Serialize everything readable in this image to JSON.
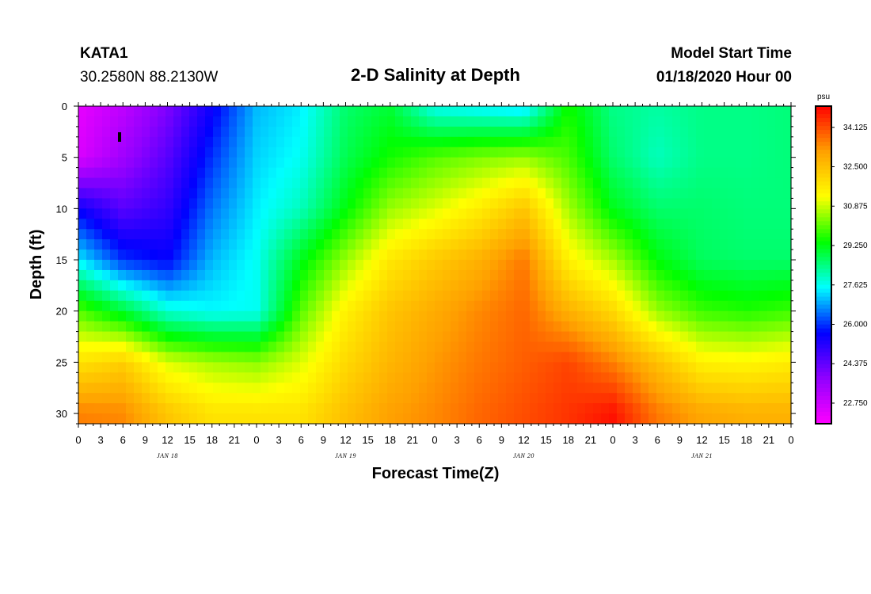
{
  "header": {
    "station_id": "KATA1",
    "station_coords": "30.2580N 88.2130W",
    "title": "2-D Salinity at Depth",
    "model_start_label": "Model Start Time",
    "model_start_value": "01/18/2020 Hour 00"
  },
  "chart_data": {
    "type": "heatmap",
    "title": "2-D Salinity at Depth",
    "xlabel": "Forecast Time(Z)",
    "ylabel": "Depth (ft)",
    "x_tick_labels": [
      "0",
      "3",
      "6",
      "9",
      "12",
      "15",
      "18",
      "21",
      "0",
      "3",
      "6",
      "9",
      "12",
      "15",
      "18",
      "21",
      "0",
      "3",
      "6",
      "9",
      "12",
      "15",
      "18",
      "21",
      "0",
      "3",
      "6",
      "9",
      "12",
      "15",
      "18",
      "21",
      "0"
    ],
    "x_range_hours": [
      0,
      96
    ],
    "date_labels": [
      {
        "text": "JAN 18",
        "hour": 12
      },
      {
        "text": "JAN 19",
        "hour": 36
      },
      {
        "text": "JAN 20",
        "hour": 60
      },
      {
        "text": "JAN 21",
        "hour": 84
      }
    ],
    "y_ticks": [
      "0",
      "5",
      "10",
      "15",
      "20",
      "25",
      "30"
    ],
    "y_range_ft": [
      0,
      31
    ],
    "y_inverted": true,
    "colorbar": {
      "unit": "psu",
      "labels": [
        "34.125",
        "32.500",
        "30.875",
        "29.250",
        "27.625",
        "26.000",
        "24.375",
        "22.750"
      ],
      "range": [
        21.9,
        35.0
      ],
      "colors": [
        "#ff00ff",
        "#9000ff",
        "#0000ff",
        "#00ffff",
        "#00ff00",
        "#ffff00",
        "#ffa000",
        "#ff0000"
      ]
    },
    "depth_levels_ft": [
      0,
      5,
      10,
      15,
      20,
      25,
      30
    ],
    "time_hours": [
      0,
      6,
      12,
      18,
      24,
      30,
      36,
      42,
      48,
      54,
      60,
      66,
      72,
      78,
      84,
      90,
      96
    ],
    "salinity_psu": [
      [
        22.3,
        23.0,
        24.0,
        25.5,
        27.0,
        27.4,
        28.6,
        29.0,
        27.6,
        27.4,
        27.2,
        29.5,
        28.4,
        28.2,
        28.4,
        28.4,
        28.5
      ],
      [
        22.5,
        23.5,
        24.5,
        26.0,
        27.2,
        27.6,
        28.8,
        29.5,
        30.0,
        30.3,
        30.5,
        29.9,
        28.6,
        28.0,
        28.4,
        28.4,
        28.5
      ],
      [
        25.5,
        24.5,
        25.0,
        26.5,
        27.4,
        28.0,
        29.3,
        30.5,
        31.0,
        31.6,
        32.4,
        30.6,
        29.2,
        28.6,
        28.6,
        28.5,
        28.5
      ],
      [
        27.4,
        26.0,
        25.6,
        27.0,
        27.6,
        29.2,
        30.5,
        31.7,
        32.3,
        32.8,
        33.6,
        31.5,
        30.6,
        29.3,
        28.7,
        28.6,
        28.6
      ],
      [
        30.0,
        29.0,
        27.8,
        27.5,
        27.6,
        30.0,
        31.5,
        32.4,
        32.9,
        33.4,
        33.8,
        32.8,
        32.0,
        30.5,
        29.8,
        29.6,
        29.8
      ],
      [
        31.8,
        32.2,
        31.0,
        30.6,
        30.4,
        31.0,
        32.0,
        32.7,
        33.2,
        33.6,
        33.9,
        34.2,
        33.5,
        32.5,
        31.5,
        31.4,
        31.6
      ],
      [
        33.5,
        33.4,
        32.4,
        31.8,
        31.8,
        31.8,
        32.5,
        33.1,
        33.4,
        33.8,
        34.1,
        34.4,
        34.8,
        33.6,
        33.0,
        32.8,
        32.8
      ]
    ]
  }
}
